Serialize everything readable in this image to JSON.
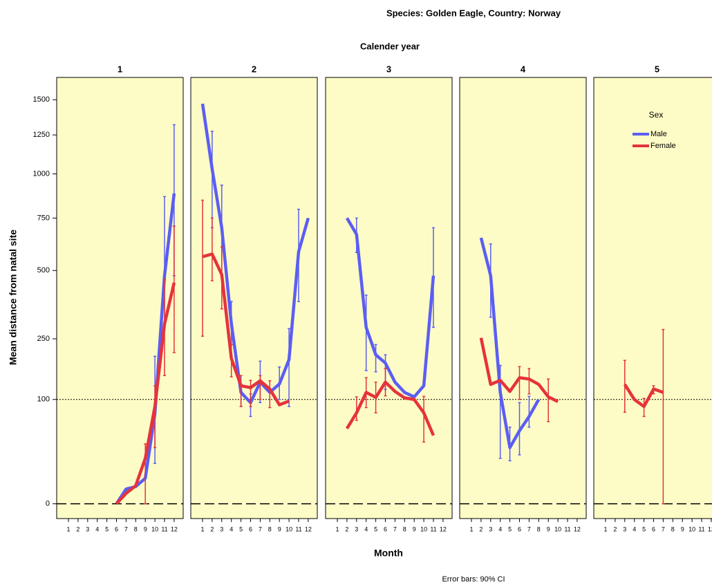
{
  "chart_data": {
    "type": "line",
    "title": "Species: Golden Eagle, Country: Norway",
    "facet_title": "Calender year",
    "xlabel": "Month",
    "ylabel": "Mean distance from natal site",
    "note": "Error bars: 90% CI",
    "legend_title": "Sex",
    "legend": "panel-5-top-right",
    "scale": "sqrt",
    "ylim": [
      -2,
      1670
    ],
    "yticks": [
      0,
      100,
      250,
      500,
      750,
      1000,
      1250,
      1500
    ],
    "reference_lines": [
      {
        "value": 0,
        "style": "dashed"
      },
      {
        "value": 100,
        "style": "dotted"
      }
    ],
    "panel_color": "#fdfcc6",
    "categories": [
      "1",
      "2",
      "3",
      "4",
      "5",
      "6",
      "7",
      "8",
      "9",
      "10",
      "11",
      "12"
    ],
    "series": [
      {
        "name": "Male",
        "color": "#5b5ef2"
      },
      {
        "name": "Female",
        "color": "#e5333b"
      }
    ],
    "panels": [
      {
        "label": "1",
        "data": [
          {
            "values": [
              null,
              null,
              null,
              null,
              null,
              0,
              2,
              2.7,
              6,
              75,
              478,
              885
            ],
            "error_low": [
              null,
              null,
              null,
              null,
              null,
              null,
              null,
              null,
              null,
              15,
              297,
              478
            ],
            "error_high": [
              null,
              null,
              null,
              null,
              null,
              null,
              null,
              null,
              null,
              200,
              867,
              1320
            ]
          },
          {
            "values": [
              null,
              null,
              null,
              null,
              null,
              0,
              1,
              3,
              19,
              87,
              297,
              449
            ],
            "error_low": [
              null,
              null,
              null,
              null,
              null,
              null,
              null,
              null,
              0,
              29,
              151,
              210
            ],
            "error_high": [
              null,
              null,
              null,
              null,
              null,
              null,
              null,
              null,
              33,
              128,
              463,
              708
            ]
          }
        ]
      },
      {
        "label": "2",
        "data": [
          {
            "values": [
              1470,
              1030,
              700,
              298,
              114,
              94,
              136,
              114,
              132,
              191,
              584,
              750
            ],
            "error_low": [
              null,
              700,
              478,
              233,
              87,
              70,
              94,
              null,
              100,
              87,
              376,
              null
            ],
            "error_high": [
              null,
              1275,
              933,
              376,
              132,
              111,
              187,
              null,
              172,
              282,
              797,
              null
            ]
          },
          {
            "values": [
              561,
              573,
              483,
              194,
              128,
              124,
              139,
              121,
              90,
              97,
              null,
              null
            ],
            "error_low": [
              258,
              457,
              349,
              148,
              87,
              87,
              100,
              85,
              null,
              null,
              null,
              null
            ],
            "error_high": [
              847,
              750,
              606,
              233,
              151,
              140,
              151,
              139,
              null,
              null,
              null,
              null
            ]
          }
        ]
      },
      {
        "label": "3",
        "data": [
          {
            "values": [
              null,
              750,
              667,
              286,
              204,
              182,
              136,
              114,
              105,
              128,
              478,
              null
            ],
            "error_low": [
              null,
              null,
              580,
              163,
              160,
              120,
              null,
              null,
              null,
              null,
              286,
              null
            ],
            "error_high": [
              null,
              null,
              750,
              400,
              233,
              204,
              null,
              null,
              null,
              null,
              700,
              null
            ]
          },
          {
            "values": [
              null,
              52,
              76,
              114,
              104,
              136,
              116,
              103,
              100,
              76,
              43,
              null
            ],
            "error_low": [
              null,
              null,
              64,
              85,
              76,
              107,
              null,
              null,
              null,
              35,
              null,
              null
            ],
            "error_high": [
              null,
              null,
              105,
              146,
              136,
              168,
              null,
              null,
              null,
              106,
              null,
              null
            ]
          }
        ]
      },
      {
        "label": "4",
        "data": [
          {
            "values": [
              null,
              650,
              478,
              114,
              29,
              49,
              70,
              100,
              null,
              null,
              null,
              null
            ],
            "error_low": [
              null,
              null,
              320,
              19,
              17,
              22,
              54,
              null,
              null,
              null,
              null,
              null
            ],
            "error_high": [
              null,
              null,
              620,
              176,
              54,
              94,
              106,
              null,
              null,
              null,
              null,
              null
            ]
          },
          {
            "values": [
              null,
              253,
              131,
              140,
              116,
              146,
              143,
              131,
              105,
              96,
              null,
              null
            ],
            "error_low": [
              null,
              null,
              null,
              null,
              null,
              100,
              111,
              null,
              62,
              null,
              null,
              null
            ],
            "error_high": [
              null,
              null,
              null,
              null,
              null,
              173,
              168,
              null,
              143,
              null,
              null,
              null
            ]
          }
        ]
      },
      {
        "label": "5",
        "data": [
          {
            "values": [
              null,
              null,
              null,
              null,
              null,
              null,
              null,
              null,
              null,
              null,
              null,
              null
            ],
            "error_low": [
              null,
              null,
              null,
              null,
              null,
              null,
              null,
              null,
              null,
              null,
              null,
              null
            ],
            "error_high": [
              null,
              null,
              null,
              null,
              null,
              null,
              null,
              null,
              null,
              null,
              null,
              null
            ]
          },
          {
            "values": [
              null,
              null,
              131,
              100,
              87,
              121,
              114,
              null,
              null,
              null,
              null,
              null
            ],
            "error_low": [
              null,
              null,
              77,
              null,
              70,
              111,
              0,
              null,
              null,
              null,
              null,
              null
            ],
            "error_high": [
              null,
              null,
              189,
              null,
              102,
              128,
              279,
              null,
              null,
              null,
              null,
              null
            ]
          }
        ]
      }
    ]
  }
}
